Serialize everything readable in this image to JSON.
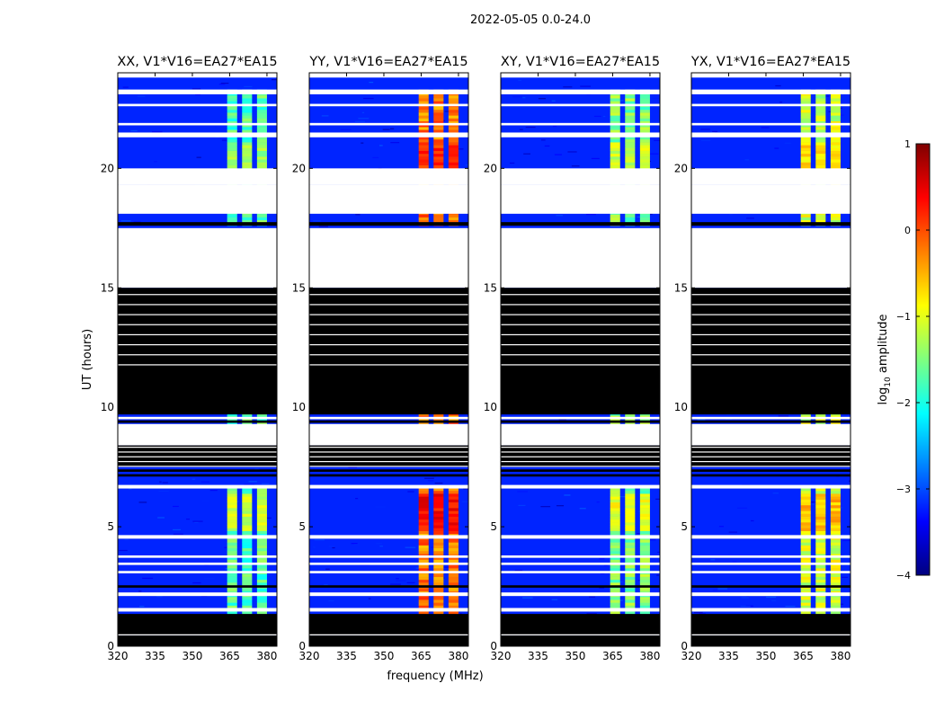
{
  "figure": {
    "suptitle": "2022-05-05 0.0-24.0",
    "ylabel": "UT (hours)",
    "xlabel": "frequency (MHz)"
  },
  "colorbar": {
    "label_prefix": "log",
    "label_sub": "10",
    "label_suffix": " amplitude",
    "range": [
      -4,
      1
    ],
    "ticks": [
      "1",
      "0",
      "−1",
      "−2",
      "−3",
      "−4"
    ],
    "tick_values": [
      1,
      0,
      -1,
      -2,
      -3,
      -4
    ],
    "colors": [
      "#00007f",
      "#0000ff",
      "#007fff",
      "#00ffff",
      "#7fff7f",
      "#ffff00",
      "#ff7f00",
      "#ff0000",
      "#7f0000"
    ]
  },
  "chart_data": {
    "type": "heatmap",
    "xlim": [
      320,
      384
    ],
    "ylim": [
      0,
      24
    ],
    "xticks": [
      320,
      335,
      350,
      365,
      380
    ],
    "xtick_labels": [
      "320",
      "335",
      "350",
      "365",
      "380"
    ],
    "yticks": [
      0,
      5,
      10,
      15,
      20
    ],
    "ytick_labels": [
      "0",
      "5",
      "10",
      "15",
      "20"
    ],
    "rfi_bands_mhz": [
      [
        364,
        368
      ],
      [
        370,
        374
      ],
      [
        376,
        380
      ]
    ],
    "panels": [
      {
        "title": "XX, V1*V16=EA27*EA15",
        "peak_level": -1.2
      },
      {
        "title": "YY, V1*V16=EA27*EA15",
        "peak_level": 0.3
      },
      {
        "title": "XY, V1*V16=EA27*EA15",
        "peak_level": -1.0
      },
      {
        "title": "YX, V1*V16=EA27*EA15",
        "peak_level": -0.6
      }
    ],
    "background_level": -3.2,
    "flagged_black_ranges_hours": [
      [
        0.0,
        0.45
      ],
      [
        9.7,
        11.7
      ],
      [
        11.7,
        15.0
      ],
      [
        7.5,
        8.4
      ]
    ],
    "no_data_ranges_hours": [
      [
        15.0,
        17.5
      ],
      [
        18.1,
        19.3
      ]
    ]
  }
}
